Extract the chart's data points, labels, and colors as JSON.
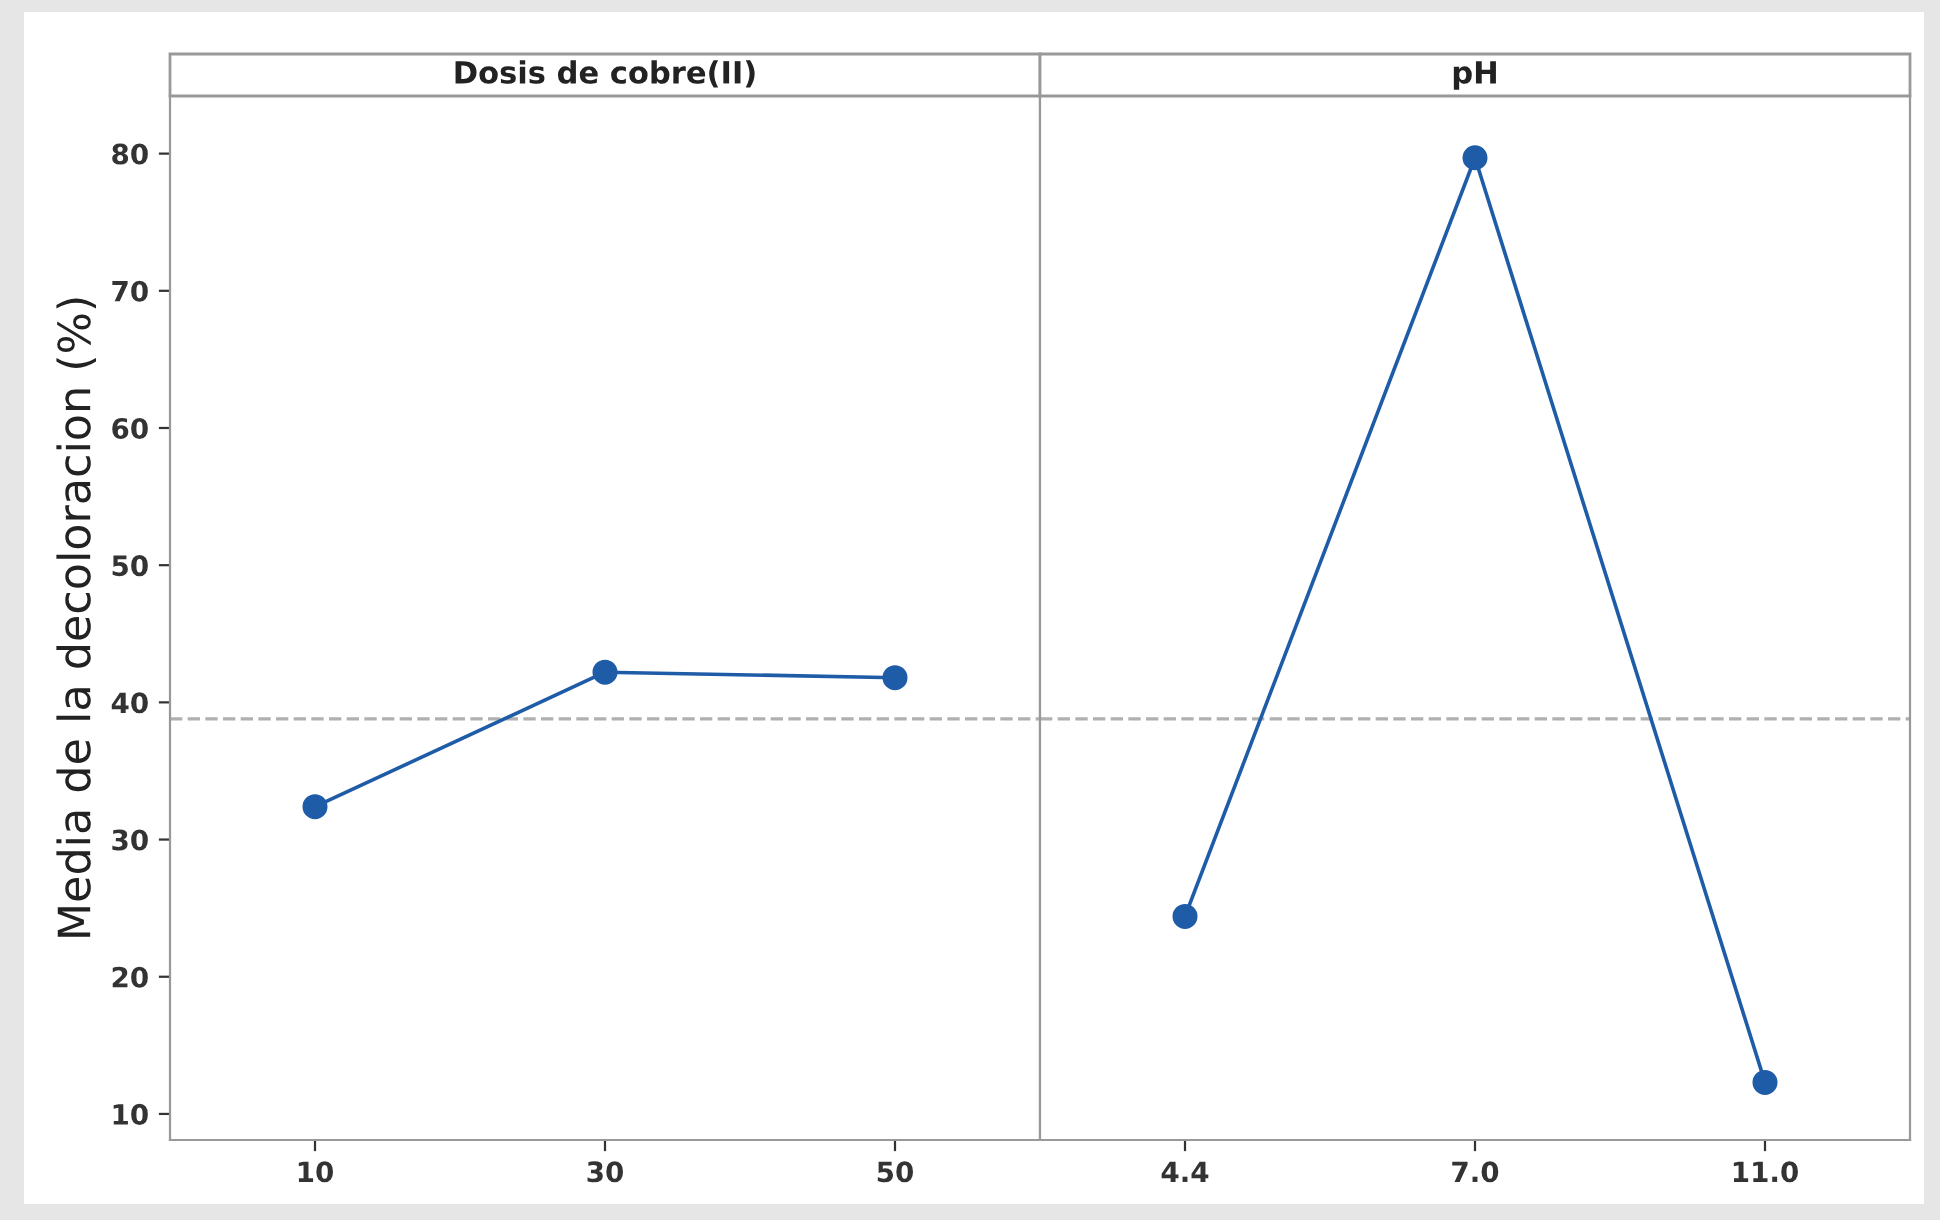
{
  "chart_data": [
    {
      "type": "line",
      "title": "Dosis de cobre(II)",
      "ylabel": "Media de la decoloracion (%)",
      "categories": [
        "10",
        "30",
        "50"
      ],
      "series": [
        {
          "color": "#1f5ca8",
          "values": [
            32.4,
            42.2,
            41.8
          ]
        }
      ],
      "ylim": [
        8.1,
        84.2
      ],
      "yticks": [
        10,
        20,
        30,
        40,
        50,
        60,
        70,
        80
      ],
      "marker": "circle",
      "line_style": "solid",
      "ref_lines": [
        {
          "axis": "y",
          "value": 38.8,
          "color": "#b0b0b0",
          "line_style": "dashed"
        }
      ],
      "grid": false,
      "legend": false
    },
    {
      "type": "line",
      "title": "pH",
      "categories": [
        "4.4",
        "7.0",
        "11.0"
      ],
      "series": [
        {
          "color": "#1f5ca8",
          "values": [
            24.4,
            79.7,
            12.3
          ]
        }
      ],
      "ylim": [
        8.1,
        84.2
      ],
      "yticks": [
        10,
        20,
        30,
        40,
        50,
        60,
        70,
        80
      ],
      "tick_labels": "x",
      "marker": "circle",
      "line_style": "solid",
      "ref_lines": [
        {
          "axis": "y",
          "value": 38.8,
          "color": "#b0b0b0",
          "line_style": "dashed"
        }
      ],
      "grid": false,
      "legend": false
    }
  ]
}
